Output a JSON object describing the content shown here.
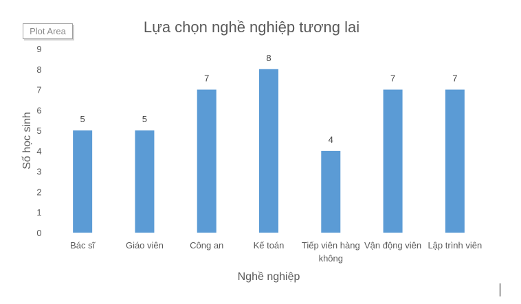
{
  "tooltip": "Plot Area",
  "chart_data": {
    "type": "bar",
    "title": "Lựa chọn nghề nghiệp tương lai",
    "xlabel": "Nghề nghiệp",
    "ylabel": "Số học sinh",
    "categories": [
      "Bác sĩ",
      "Giáo viên",
      "Công an",
      "Kế toán",
      "Tiếp viên hàng không",
      "Vận động viên",
      "Lập trình viên"
    ],
    "values": [
      5,
      5,
      7,
      8,
      4,
      7,
      7
    ],
    "ylim": [
      0,
      9
    ],
    "yticks": [
      0,
      1,
      2,
      3,
      4,
      5,
      6,
      7,
      8,
      9
    ],
    "grid": false,
    "data_labels": true,
    "bar_color": "#5B9BD5"
  }
}
